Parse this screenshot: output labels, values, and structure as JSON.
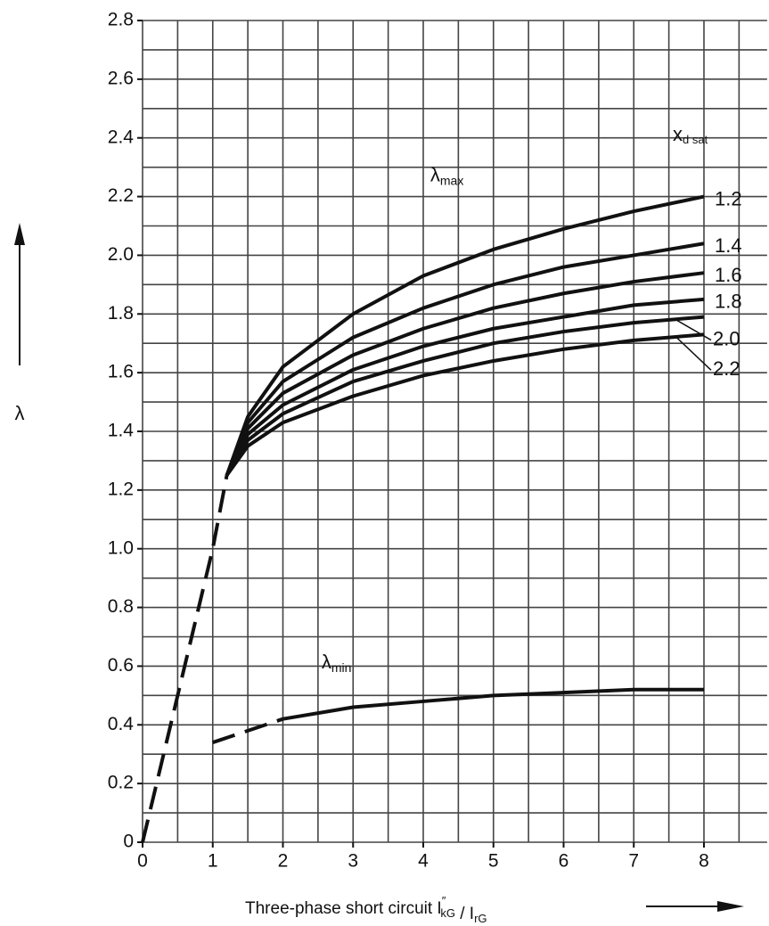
{
  "chart_data": {
    "type": "line",
    "y_label": "λ",
    "x_label": [
      {
        "text": "Three-phase short circuit "
      },
      {
        "text": "I",
        "sup": "″",
        "sub": "kG"
      },
      {
        "text": " / "
      },
      {
        "text": "I",
        "sub": "rG"
      }
    ],
    "legend_title": {
      "text": "x",
      "sub": "d sat"
    },
    "annotations": [
      {
        "text": "λ",
        "sub": "max",
        "x": 4.1,
        "y": 2.27
      },
      {
        "text": "λ",
        "sub": "min",
        "x": 2.55,
        "y": 0.61
      }
    ],
    "xlim": [
      0,
      8.9
    ],
    "ylim": [
      0,
      2.8
    ],
    "xticks": [
      0,
      1,
      2,
      3,
      4,
      5,
      6,
      7,
      8
    ],
    "yticks": [
      0,
      0.2,
      0.4,
      0.6,
      0.8,
      {
        "value": 1,
        "label": "1.0"
      },
      1.2,
      1.4,
      1.6,
      1.8,
      {
        "value": 2,
        "label": "2.0"
      },
      2.2,
      2.4,
      2.6,
      2.8
    ],
    "x_gridlines": [
      0,
      0.5,
      1,
      1.5,
      2,
      2.5,
      3,
      3.5,
      4,
      4.5,
      5,
      5.5,
      6,
      6.5,
      7,
      7.5,
      8,
      8.5
    ],
    "y_gridlines": [
      0,
      0.1,
      0.2,
      0.3,
      0.4,
      0.5,
      0.6,
      0.7,
      0.8,
      0.9,
      1,
      1.1,
      1.2,
      1.3,
      1.4,
      1.5,
      1.6,
      1.7,
      1.8,
      1.9,
      2,
      2.1,
      2.2,
      2.3,
      2.4,
      2.5,
      2.6,
      2.7,
      2.8
    ],
    "grid": true,
    "series": [
      {
        "style": "dashed",
        "color": "#111111",
        "x": [
          0,
          1,
          1.2
        ],
        "values": [
          0,
          1,
          1.25
        ]
      },
      {
        "name": "1.2",
        "color": "#111111",
        "x": [
          1.2,
          1.5,
          2,
          3,
          4,
          5,
          6,
          7,
          8
        ],
        "values": [
          1.25,
          1.45,
          1.62,
          1.8,
          1.93,
          2.02,
          2.09,
          2.15,
          2.2
        ]
      },
      {
        "name": "1.4",
        "color": "#111111",
        "x": [
          1.2,
          1.5,
          2,
          3,
          4,
          5,
          6,
          7,
          8
        ],
        "values": [
          1.25,
          1.43,
          1.57,
          1.72,
          1.82,
          1.9,
          1.96,
          2,
          2.04
        ]
      },
      {
        "name": "1.6",
        "color": "#111111",
        "x": [
          1.2,
          1.5,
          2,
          3,
          4,
          5,
          6,
          7,
          8
        ],
        "values": [
          1.25,
          1.41,
          1.53,
          1.66,
          1.75,
          1.82,
          1.87,
          1.91,
          1.94
        ]
      },
      {
        "name": "1.8",
        "color": "#111111",
        "x": [
          1.2,
          1.5,
          2,
          3,
          4,
          5,
          6,
          7,
          8
        ],
        "values": [
          1.25,
          1.39,
          1.49,
          1.61,
          1.69,
          1.75,
          1.79,
          1.83,
          1.85
        ]
      },
      {
        "name": "2.0",
        "color": "#111111",
        "x": [
          1.2,
          1.5,
          2,
          3,
          4,
          5,
          6,
          7,
          8
        ],
        "values": [
          1.25,
          1.37,
          1.46,
          1.57,
          1.64,
          1.7,
          1.74,
          1.77,
          1.79
        ]
      },
      {
        "name": "2.2",
        "color": "#111111",
        "x": [
          1.2,
          1.5,
          2,
          3,
          4,
          5,
          6,
          7,
          8
        ],
        "values": [
          1.25,
          1.35,
          1.43,
          1.52,
          1.59,
          1.64,
          1.68,
          1.71,
          1.73
        ]
      },
      {
        "style": "dashed",
        "color": "#111111",
        "x": [
          1,
          2
        ],
        "values": [
          0.34,
          0.42
        ]
      },
      {
        "color": "#111111",
        "x": [
          2,
          3,
          4,
          5,
          6,
          7,
          8
        ],
        "values": [
          0.42,
          0.46,
          0.48,
          0.5,
          0.51,
          0.52,
          0.52
        ]
      }
    ]
  }
}
